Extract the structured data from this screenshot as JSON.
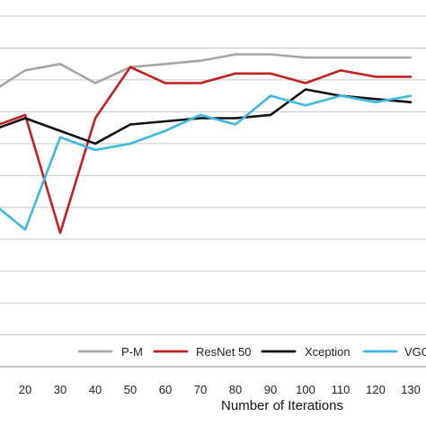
{
  "chart_data": {
    "type": "line",
    "xlabel": "Number of Iterations",
    "ylabel": "",
    "x": [
      10,
      20,
      30,
      40,
      50,
      60,
      70,
      80,
      90,
      100,
      110,
      120,
      130
    ],
    "x_tick_labels": [
      "20",
      "30",
      "40",
      "50",
      "60",
      "70",
      "80",
      "90",
      "100",
      "110",
      "120",
      "130"
    ],
    "ylim": [
      0,
      11
    ],
    "grid": true,
    "legend_position": "bottom",
    "series": [
      {
        "name": "P-M",
        "color": "#a6a6a6",
        "values": [
          8.6,
          9.3,
          9.5,
          8.9,
          9.4,
          9.5,
          9.6,
          9.8,
          9.8,
          9.7,
          9.7,
          9.7,
          9.7
        ]
      },
      {
        "name": "ResNet 50",
        "color": "#c0211f",
        "values": [
          7.5,
          7.9,
          4.2,
          7.8,
          9.4,
          8.9,
          8.9,
          9.2,
          9.2,
          8.9,
          9.3,
          9.1,
          9.1
        ]
      },
      {
        "name": "Xception",
        "color": "#111111",
        "values": [
          7.4,
          7.8,
          7.4,
          7.0,
          7.6,
          7.7,
          7.8,
          7.8,
          7.9,
          8.7,
          8.5,
          8.4,
          8.3
        ]
      },
      {
        "name": "VGG",
        "color": "#3db7e4",
        "values": [
          5.2,
          4.3,
          7.2,
          6.8,
          7.0,
          7.4,
          7.9,
          7.6,
          8.5,
          8.2,
          8.5,
          8.3,
          8.5
        ]
      }
    ]
  }
}
